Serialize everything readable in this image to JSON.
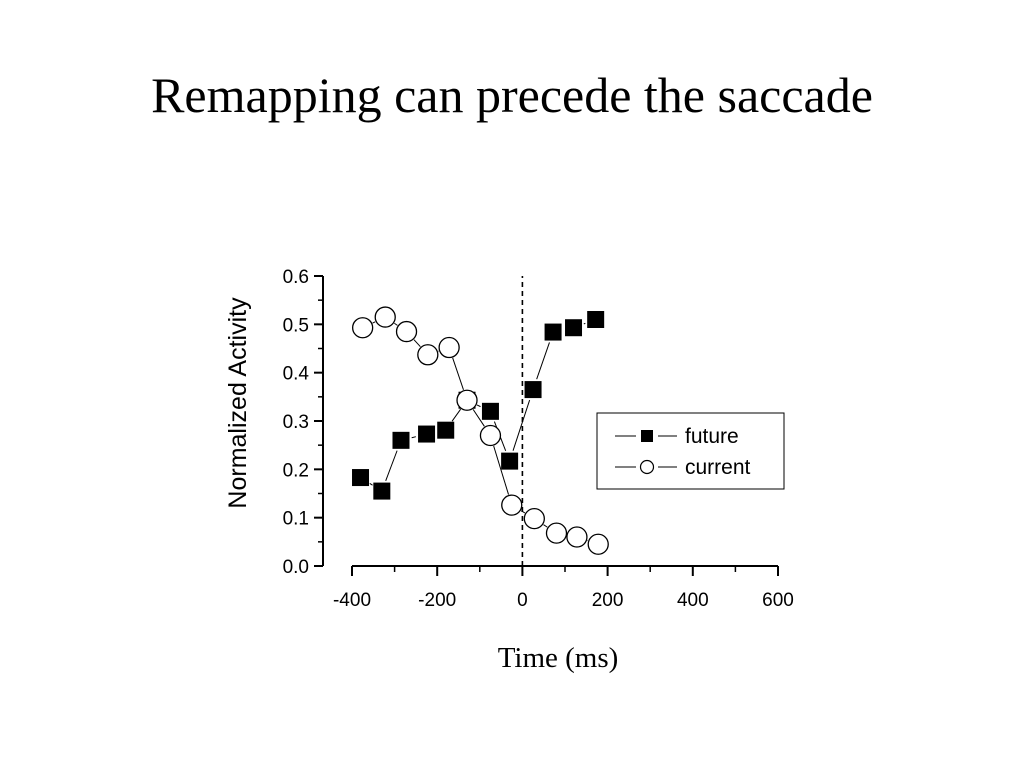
{
  "slide": {
    "title": "Remapping can precede the saccade"
  },
  "chart_data": {
    "type": "scatter",
    "title": "Remapping can precede the saccade",
    "xlabel": "Time (ms)",
    "ylabel": "Normalized Activity",
    "xlim": [
      -400,
      600
    ],
    "ylim": [
      0,
      0.6
    ],
    "xticks": [
      -400,
      -200,
      0,
      200,
      400,
      600
    ],
    "xtick_labels": [
      "-400",
      "-200",
      "0",
      "200",
      "400",
      "600"
    ],
    "yticks": [
      0,
      0.1,
      0.2,
      0.3,
      0.4,
      0.5,
      0.6
    ],
    "ytick_labels": [
      "0.0",
      "0.1",
      "0.2",
      "0.3",
      "0.4",
      "0.5",
      "0.6"
    ],
    "reference_line": {
      "x": 0,
      "style": "dashed"
    },
    "grid": false,
    "legend": "right",
    "series": [
      {
        "name": "future",
        "marker": "filled-square",
        "color": "#000000",
        "x": [
          -380,
          -330,
          -285,
          -225,
          -180,
          -130,
          -75,
          -30,
          25,
          72,
          120,
          172
        ],
        "y": [
          0.183,
          0.155,
          0.26,
          0.273,
          0.281,
          0.343,
          0.32,
          0.217,
          0.365,
          0.484,
          0.493,
          0.51
        ]
      },
      {
        "name": "current",
        "marker": "open-circle",
        "color": "#000000",
        "x": [
          -375,
          -322,
          -272,
          -222,
          -172,
          -130,
          -75,
          -25,
          28,
          80,
          128,
          178
        ],
        "y": [
          0.493,
          0.515,
          0.485,
          0.437,
          0.452,
          0.343,
          0.27,
          0.126,
          0.098,
          0.068,
          0.06,
          0.045
        ]
      }
    ]
  }
}
